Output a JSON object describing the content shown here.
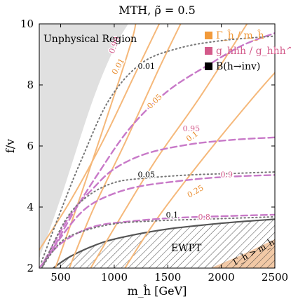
{
  "chart_data": {
    "type": "line",
    "title": "MTH,  ρ̃ = 0.5",
    "xlabel": "m_ĥ [GeV]",
    "ylabel": "f/v",
    "xlim": [
      300,
      2500
    ],
    "ylim": [
      2,
      10
    ],
    "x_ticks": [
      500,
      1000,
      1500,
      2000,
      2500
    ],
    "y_ticks": [
      2,
      4,
      6,
      8,
      10
    ],
    "x_tick_labels": [
      "500",
      "1000",
      "1500",
      "2000",
      "2500"
    ],
    "y_tick_labels": [
      "2",
      "4",
      "6",
      "8",
      "10"
    ],
    "regions": {
      "unphysical": {
        "label": "Unphysical Region",
        "color": "#e0e0e0",
        "boundary": [
          [
            300,
            2.3
          ],
          [
            520,
            4.5
          ],
          [
            800,
            7.5
          ],
          [
            1000,
            9.2
          ],
          [
            1130,
            10
          ]
        ]
      },
      "ewpt": {
        "label": "EWPT",
        "boundary": [
          [
            430,
            2
          ],
          [
            600,
            2.4
          ],
          [
            900,
            2.85
          ],
          [
            1200,
            3.1
          ],
          [
            1500,
            3.28
          ],
          [
            1800,
            3.4
          ],
          [
            2100,
            3.5
          ],
          [
            2500,
            3.6
          ]
        ]
      },
      "gamma_gt_m": {
        "label": "Γ_ĥ > m_ĥ",
        "color": "#f2c9a6",
        "boundary": [
          [
            1900,
            2
          ],
          [
            2200,
            2.45
          ],
          [
            2500,
            2.95
          ]
        ]
      }
    },
    "legend": [
      {
        "label": "Γ_ĥ / m_ĥ",
        "color": "#f29a3a"
      },
      {
        "label": "g_hhh / g_hhh^SM",
        "color": "#d35a8a"
      },
      {
        "label": "B(h→inv)",
        "color": "#000000"
      }
    ],
    "series": [
      {
        "name": "Γ_ĥ / m_ĥ",
        "value_label": "0.99",
        "color": "#f5b87a",
        "points": [
          [
            300,
            2.6
          ],
          [
            590,
            4.2
          ],
          [
            900,
            6.2
          ],
          [
            1200,
            8.4
          ],
          [
            1420,
            10
          ]
        ]
      },
      {
        "name": "Γ_ĥ / m_ĥ",
        "value_label": "0.01",
        "color": "#f5b87a",
        "points": [
          [
            450,
            2
          ],
          [
            650,
            4
          ],
          [
            900,
            6.6
          ],
          [
            1150,
            9.3
          ],
          [
            1200,
            10
          ]
        ]
      },
      {
        "name": "Γ_ĥ / m_ĥ",
        "value_label": "0.05",
        "color": "#f5b87a",
        "points": [
          [
            580,
            2
          ],
          [
            800,
            3.9
          ],
          [
            1100,
            6.1
          ],
          [
            1400,
            8.4
          ],
          [
            1620,
            10
          ]
        ]
      },
      {
        "name": "Γ_ĥ / m_ĥ",
        "value_label": "0.1",
        "color": "#f5b87a",
        "points": [
          [
            780,
            2
          ],
          [
            1100,
            3.9
          ],
          [
            1400,
            5.6
          ],
          [
            1800,
            7.6
          ],
          [
            2240,
            10
          ]
        ]
      },
      {
        "name": "Γ_ĥ / m_ĥ",
        "value_label": "0.25",
        "color": "#f5b87a",
        "points": [
          [
            1100,
            2
          ],
          [
            1300,
            3.1
          ],
          [
            1500,
            4.1
          ],
          [
            1900,
            5.9
          ],
          [
            2300,
            7.6
          ],
          [
            2500,
            8.4
          ]
        ]
      },
      {
        "name": "g_hhh / g_hhh^SM",
        "value_label": "0.99",
        "color": "#c879c8",
        "points": [
          [
            400,
            2.45
          ],
          [
            600,
            3.7
          ],
          [
            850,
            5.1
          ],
          [
            1150,
            6.6
          ],
          [
            1500,
            7.8
          ],
          [
            1900,
            8.7
          ],
          [
            2200,
            9.3
          ],
          [
            2500,
            9.7
          ]
        ]
      },
      {
        "name": "g_hhh / g_hhh^SM",
        "value_label": "0.95",
        "color": "#c879c8",
        "points": [
          [
            350,
            2.25
          ],
          [
            600,
            3.8
          ],
          [
            800,
            4.6
          ],
          [
            1000,
            5.25
          ],
          [
            1300,
            5.75
          ],
          [
            1700,
            6.05
          ],
          [
            2100,
            6.2
          ],
          [
            2500,
            6.28
          ]
        ]
      },
      {
        "name": "g_hhh / g_hhh^SM",
        "value_label": "0.9",
        "color": "#c879c8",
        "points": [
          [
            330,
            2.1
          ],
          [
            500,
            3.0
          ],
          [
            700,
            3.85
          ],
          [
            900,
            4.3
          ],
          [
            1200,
            4.65
          ],
          [
            1600,
            4.85
          ],
          [
            2000,
            4.98
          ],
          [
            2500,
            5.05
          ]
        ]
      },
      {
        "name": "g_hhh / g_hhh^SM",
        "value_label": "0.8",
        "color": "#c879c8",
        "points": [
          [
            310,
            2.05
          ],
          [
            500,
            2.8
          ],
          [
            800,
            3.35
          ],
          [
            1200,
            3.55
          ],
          [
            1600,
            3.65
          ],
          [
            2000,
            3.7
          ],
          [
            2500,
            3.75
          ]
        ]
      },
      {
        "name": "B(h→inv)",
        "value_label": "0.01",
        "color": "#777777",
        "points": [
          [
            320,
            2.2
          ],
          [
            520,
            4.05
          ],
          [
            700,
            5.6
          ],
          [
            950,
            7.5
          ],
          [
            1250,
            8.7
          ],
          [
            1600,
            9.2
          ],
          [
            2000,
            9.45
          ],
          [
            2500,
            9.6
          ]
        ]
      },
      {
        "name": "B(h→inv)",
        "value_label": "0.05",
        "color": "#777777",
        "points": [
          [
            330,
            2.05
          ],
          [
            550,
            3.6
          ],
          [
            750,
            4.35
          ],
          [
            1000,
            4.8
          ],
          [
            1300,
            4.95
          ],
          [
            1700,
            5.05
          ],
          [
            2100,
            5.1
          ],
          [
            2500,
            5.15
          ]
        ]
      },
      {
        "name": "B(h→inv)",
        "value_label": "0.1",
        "color": "#777777",
        "points": [
          [
            320,
            2.0
          ],
          [
            500,
            2.85
          ],
          [
            700,
            3.2
          ],
          [
            1000,
            3.45
          ],
          [
            1400,
            3.55
          ],
          [
            2000,
            3.62
          ],
          [
            2500,
            3.68
          ]
        ]
      }
    ],
    "contour_labels": [
      {
        "text": "0.99",
        "x": 1005,
        "y": 9.3,
        "color": "#d35a8a",
        "angle": -70
      },
      {
        "text": "0.01",
        "x": 1040,
        "y": 8.6,
        "color": "#e88a2a",
        "angle": -60
      },
      {
        "text": "0.01",
        "x": 1300,
        "y": 8.6,
        "color": "#000000",
        "angle": 0
      },
      {
        "text": "0.05",
        "x": 1380,
        "y": 7.45,
        "color": "#e88a2a",
        "angle": -45
      },
      {
        "text": "0.95",
        "x": 1720,
        "y": 6.55,
        "color": "#d35a8a",
        "angle": 0
      },
      {
        "text": "0.1",
        "x": 1730,
        "y": 6.3,
        "color": "#e88a2a",
        "angle": -35
      },
      {
        "text": "0.05",
        "x": 1300,
        "y": 5.05,
        "color": "#000000",
        "angle": 0
      },
      {
        "text": "0.9",
        "x": 2050,
        "y": 5.05,
        "color": "#d35a8a",
        "angle": 0
      },
      {
        "text": "0.25",
        "x": 1760,
        "y": 4.5,
        "color": "#e88a2a",
        "angle": -30
      },
      {
        "text": "0.1",
        "x": 1540,
        "y": 3.72,
        "color": "#000000",
        "angle": 0
      },
      {
        "text": "0.8",
        "x": 1840,
        "y": 3.65,
        "color": "#d35a8a",
        "angle": 0
      }
    ]
  }
}
